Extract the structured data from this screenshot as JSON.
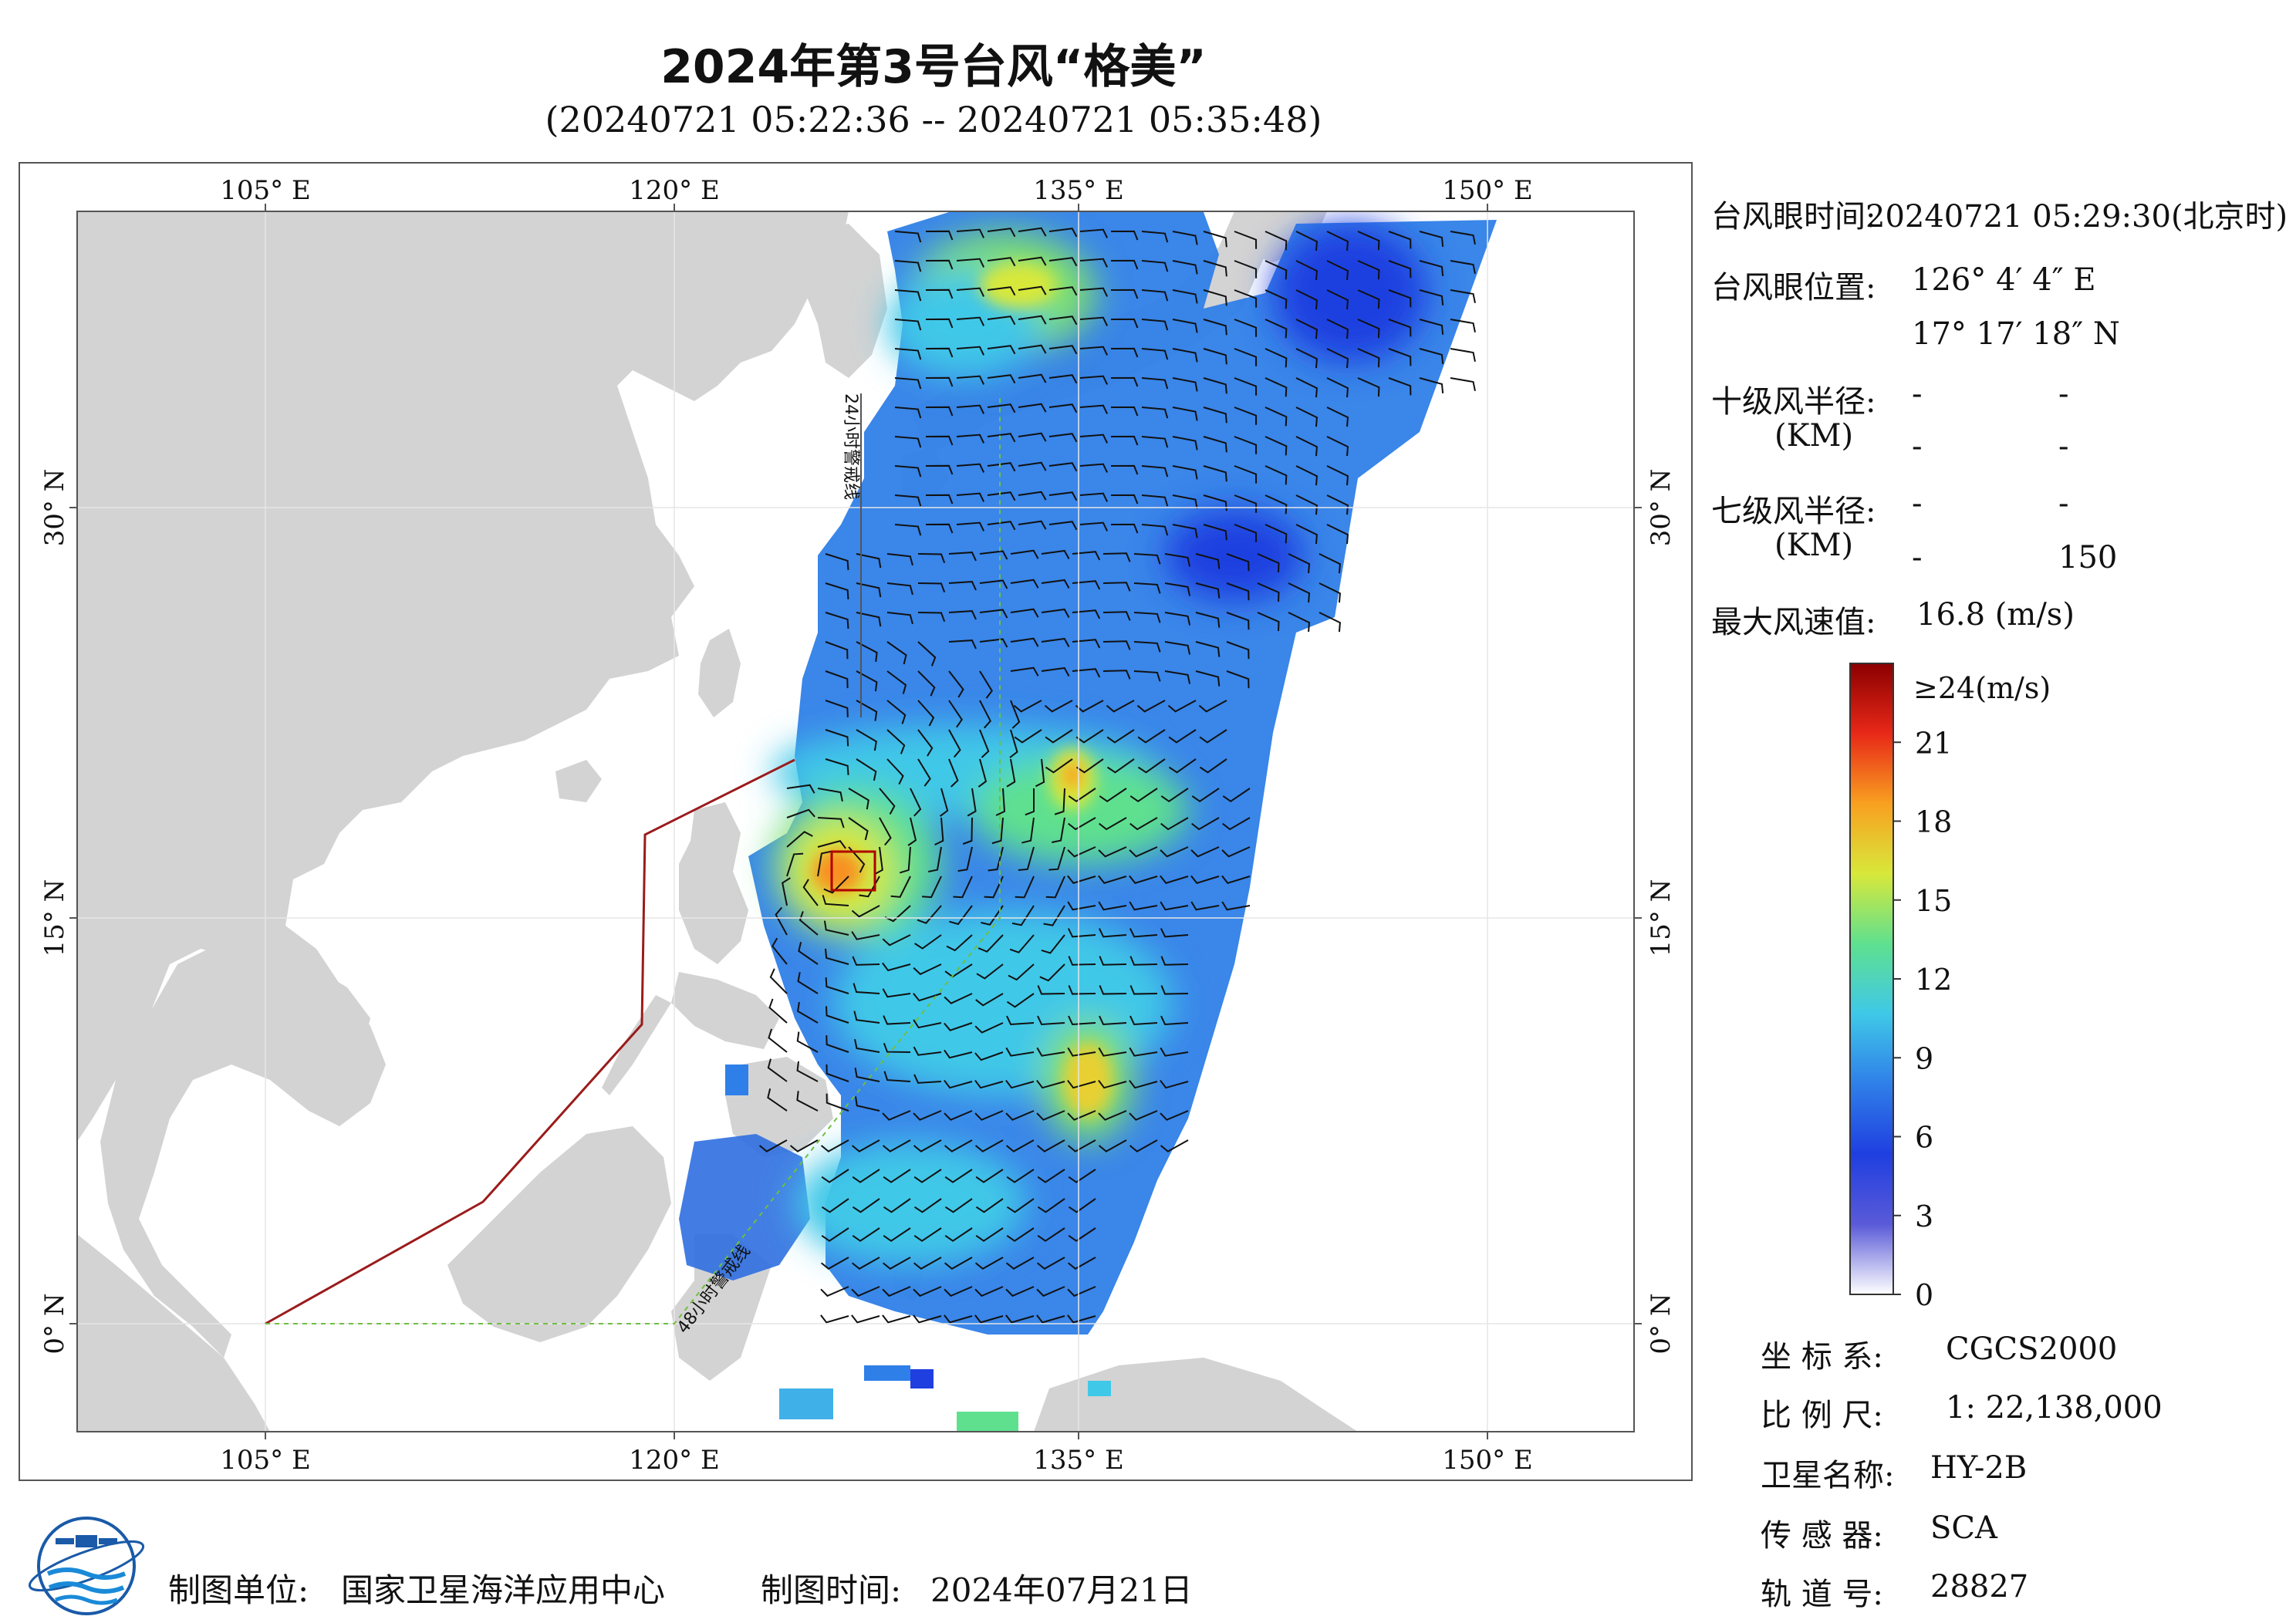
{
  "title": "2024年第3号台风“格美”",
  "subtitle": "(20240721 05:22:36 -- 20240721 05:35:48)",
  "map": {
    "axis_labels": {
      "top": [
        "105° E",
        "120° E",
        "135° E",
        "150° E"
      ],
      "bottom": [
        "105° E",
        "120° E",
        "135° E",
        "150° E"
      ],
      "left": [
        "30° N",
        "15° N",
        "0° N"
      ],
      "right": [
        "30° N",
        "15° N",
        "0° N"
      ]
    },
    "line_labels": {
      "h24": "24小时警戒线",
      "h48": "48小时警戒线"
    },
    "colors": {
      "land": "#d3d3d3",
      "sea": "#ffffff",
      "warning_24h": "#555555",
      "warning_48h": "#6fbf3f",
      "boundary": "#9b1b1b",
      "typhoon_box": "#b00000"
    }
  },
  "info_panel": {
    "eye_time_label": "台风眼时间:",
    "eye_time_value": "20240721 05:29:30(北京时)",
    "eye_position_label": "台风眼位置:",
    "eye_lon": "126° 4′ 4″ E",
    "eye_lat": "17° 17′ 18″ N",
    "radius10_label": "十级风半径:",
    "radius10_unit": "(KM)",
    "radius10_values": [
      "-",
      "-",
      "-",
      "-"
    ],
    "radius7_label": "七级风半径:",
    "radius7_unit": "(KM)",
    "radius7_values": [
      "-",
      "-",
      "-",
      "150"
    ],
    "max_wind_label": "最大风速值:",
    "max_wind_value": "16.8  (m/s)"
  },
  "colorbar": {
    "top_label": "≥24(m/s)",
    "ticks": [
      "21",
      "18",
      "15",
      "12",
      "9",
      "6",
      "3",
      "0"
    ],
    "tick_values": [
      21,
      18,
      15,
      12,
      9,
      6,
      3,
      0
    ],
    "max": 24,
    "stops": [
      "#ffffff",
      "#5a5ad8",
      "#1f3fe0",
      "#2f7fe8",
      "#3fc8e8",
      "#5fe08f",
      "#d8e83a",
      "#f8a020",
      "#e82818",
      "#8b0000"
    ]
  },
  "meta": {
    "coord_system_label": "坐 标 系:",
    "coord_system_value": "CGCS2000",
    "scale_label": "比 例 尺:",
    "scale_value": "1: 22,138,000",
    "satellite_label": "卫星名称:",
    "satellite_value": "HY-2B",
    "sensor_label": "传 感 器:",
    "sensor_value": "SCA",
    "orbit_label": "轨 道 号:",
    "orbit_value": "28827"
  },
  "footer": {
    "producer_label": "制图单位:",
    "producer_value": "国家卫星海洋应用中心",
    "date_label": "制图时间:",
    "date_value": "2024年07月21日"
  }
}
